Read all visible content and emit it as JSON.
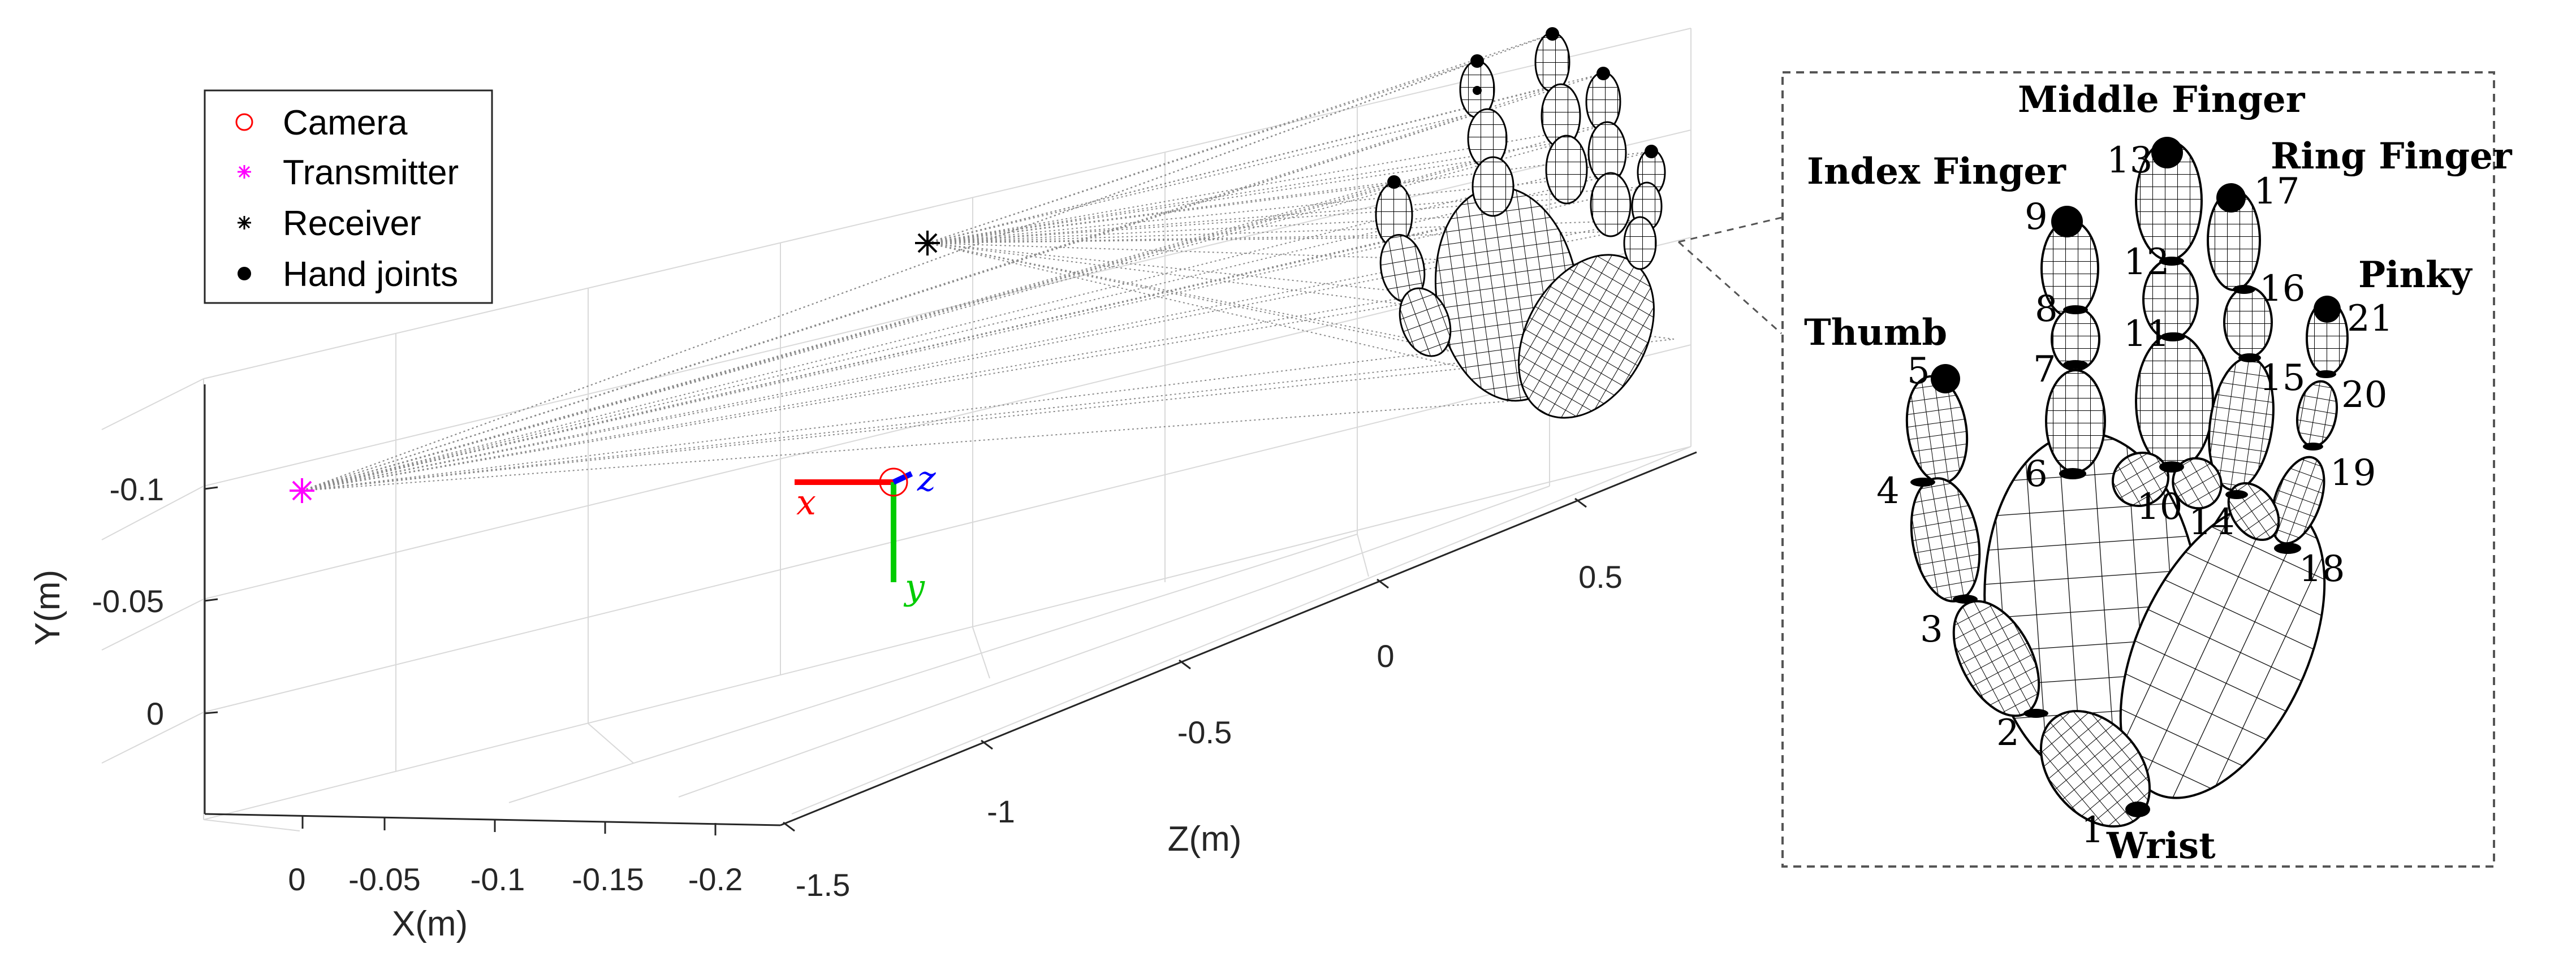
{
  "legend": {
    "items": [
      {
        "label": "Camera",
        "marker": "open-circle",
        "color": "#ff0000"
      },
      {
        "label": "Transmitter",
        "marker": "asterisk",
        "color": "#ff00ff"
      },
      {
        "label": "Receiver",
        "marker": "asterisk",
        "color": "#000000"
      },
      {
        "label": "Hand joints",
        "marker": "filled-dot",
        "color": "#000000"
      }
    ]
  },
  "axes": {
    "x_label": "X(m)",
    "y_label": "Y(m)",
    "z_label": "Z(m)",
    "x_ticks": [
      "0",
      "-0.05",
      "-0.1",
      "-0.15",
      "-0.2"
    ],
    "y_ticks": [
      "-0.1",
      "-0.05",
      "0"
    ],
    "z_ticks": [
      "-1.5",
      "-1",
      "-0.5",
      "0",
      "0.5"
    ]
  },
  "camera_frame": {
    "x": "x",
    "y": "y",
    "z": "z",
    "colors": {
      "x": "#ff0000",
      "y": "#00cc00",
      "z": "#0000ff"
    }
  },
  "inset": {
    "finger_labels": {
      "thumb": "Thumb",
      "index": "Index Finger",
      "middle": "Middle Finger",
      "ring": "Ring Finger",
      "pinky": "Pinky",
      "wrist": "Wrist"
    },
    "joint_numbers": [
      "1",
      "2",
      "3",
      "4",
      "5",
      "6",
      "7",
      "8",
      "9",
      "10",
      "11",
      "12",
      "13",
      "14",
      "15",
      "16",
      "17",
      "18",
      "19",
      "20",
      "21"
    ]
  }
}
